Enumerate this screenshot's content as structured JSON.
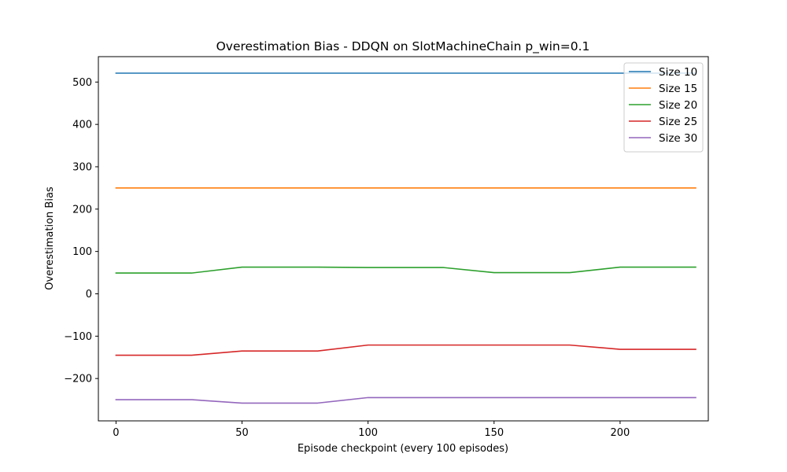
{
  "chart_data": {
    "type": "line",
    "title": "Overestimation Bias - DDQN on SlotMachineChain p_win=0.1",
    "xlabel": "Episode checkpoint (every 100 episodes)",
    "ylabel": "Overestimation Bias",
    "xlim": [
      -7,
      235
    ],
    "ylim": [
      -300,
      560
    ],
    "xticks": [
      0,
      50,
      100,
      150,
      200
    ],
    "yticks": [
      -200,
      -100,
      0,
      100,
      200,
      300,
      400,
      500
    ],
    "ytick_labels": [
      "−200",
      "−100",
      "0",
      "100",
      "200",
      "300",
      "400",
      "500"
    ],
    "legend_position": "top-right",
    "grid": false,
    "series": [
      {
        "name": "Size 10",
        "color": "#1f77b4",
        "x": [
          0,
          230
        ],
        "y": [
          521,
          521
        ]
      },
      {
        "name": "Size 15",
        "color": "#ff7f0e",
        "x": [
          0,
          230
        ],
        "y": [
          250,
          250
        ]
      },
      {
        "name": "Size 20",
        "color": "#2ca02c",
        "x": [
          0,
          30,
          50,
          80,
          100,
          130,
          150,
          180,
          200,
          230
        ],
        "y": [
          49,
          49,
          63,
          63,
          62,
          62,
          50,
          50,
          63,
          63
        ]
      },
      {
        "name": "Size 25",
        "color": "#d62728",
        "x": [
          0,
          30,
          50,
          80,
          100,
          130,
          150,
          180,
          200,
          230
        ],
        "y": [
          -145,
          -145,
          -135,
          -135,
          -121,
          -121,
          -121,
          -121,
          -131,
          -131
        ]
      },
      {
        "name": "Size 30",
        "color": "#9467bd",
        "x": [
          0,
          30,
          50,
          80,
          100,
          130,
          150,
          180,
          200,
          230
        ],
        "y": [
          -250,
          -250,
          -258,
          -258,
          -245,
          -245,
          -245,
          -245,
          -245,
          -245
        ]
      }
    ]
  }
}
